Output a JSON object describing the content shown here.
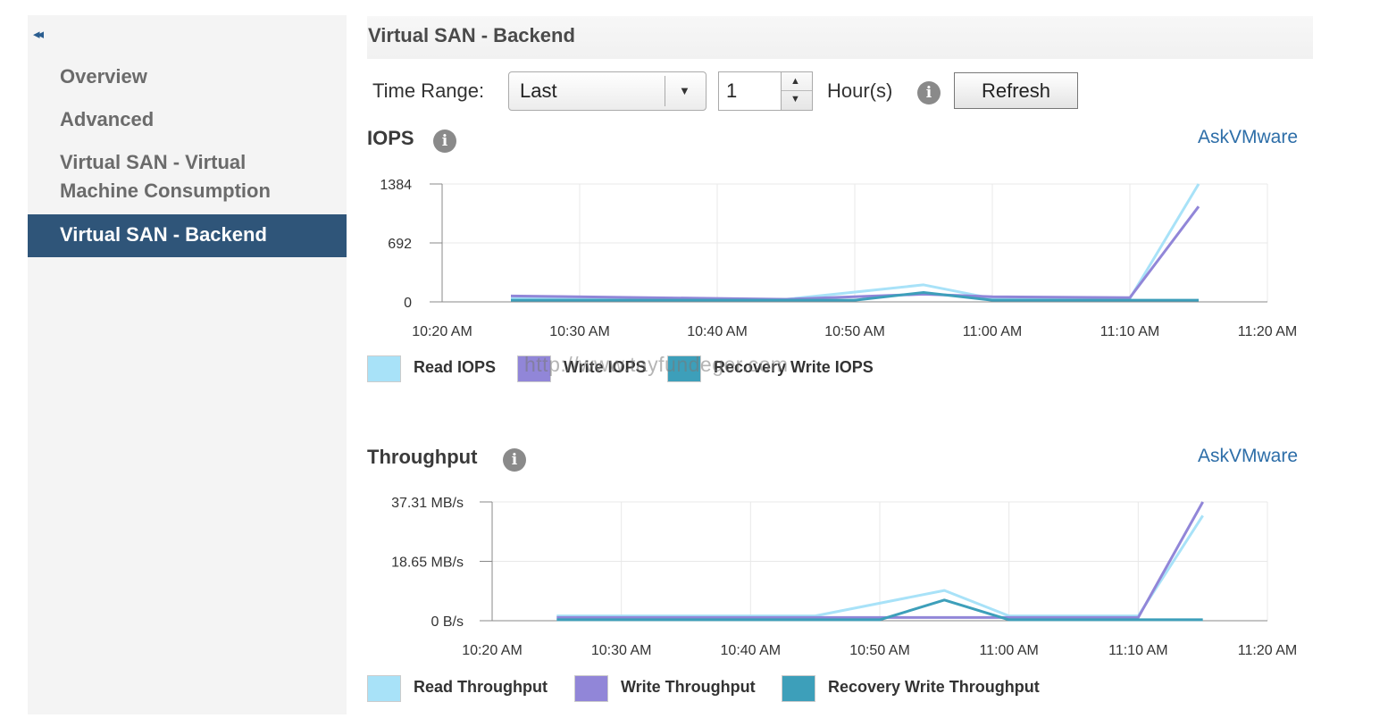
{
  "sidebar": {
    "collapse_glyph": "◂◂",
    "items": [
      {
        "label": "Overview"
      },
      {
        "label": "Advanced"
      },
      {
        "label": "Virtual SAN - Virtual"
      },
      {
        "label": "Machine Consumption"
      },
      {
        "label": "Virtual SAN - Backend"
      }
    ]
  },
  "page": {
    "title": "Virtual SAN - Backend"
  },
  "toolbar": {
    "time_range_label": "Time Range:",
    "time_range_value": "Last",
    "hours_value": "1",
    "hours_unit": "Hour(s)",
    "refresh_label": "Refresh",
    "info_glyph": "i"
  },
  "watermark": "http://www.tayfundeger.com",
  "colors": {
    "read": "#a8e2f8",
    "write": "#9186d8",
    "recovery": "#3d9fba",
    "link": "#2d6ea8",
    "active_nav": "#2f5579"
  },
  "charts": [
    {
      "title": "IOPS",
      "link": "AskVMware",
      "chart_data": {
        "type": "line",
        "x": [
          "10:25 AM",
          "10:35 AM",
          "10:45 AM",
          "10:55 AM",
          "11:00 AM",
          "11:05 AM",
          "11:10 AM",
          "11:15 AM"
        ],
        "x_ticks": [
          "10:20 AM",
          "10:30 AM",
          "10:40 AM",
          "10:50 AM",
          "11:00 AM",
          "11:10 AM",
          "11:20 AM"
        ],
        "y_ticks": [
          "1384",
          "692",
          "0"
        ],
        "ylim": [
          0,
          1384
        ],
        "series": [
          {
            "name": "Read IOPS",
            "color": "#a8e2f8",
            "points": [
              [
                "10:25",
                40
              ],
              [
                "10:45",
                30
              ],
              [
                "10:55",
                200
              ],
              [
                "11:00",
                40
              ],
              [
                "11:10",
                40
              ],
              [
                "11:15",
                1384
              ]
            ]
          },
          {
            "name": "Write IOPS",
            "color": "#9186d8",
            "points": [
              [
                "10:25",
                70
              ],
              [
                "10:45",
                30
              ],
              [
                "10:55",
                90
              ],
              [
                "11:00",
                60
              ],
              [
                "11:10",
                50
              ],
              [
                "11:15",
                1120
              ]
            ]
          },
          {
            "name": "Recovery Write IOPS",
            "color": "#3d9fba",
            "points": [
              [
                "10:25",
                20
              ],
              [
                "10:50",
                20
              ],
              [
                "10:55",
                110
              ],
              [
                "11:00",
                20
              ],
              [
                "11:15",
                20
              ]
            ]
          }
        ],
        "legend": [
          "Read IOPS",
          "Write IOPS",
          "Recovery Write IOPS"
        ],
        "grid": true
      }
    },
    {
      "title": "Throughput",
      "link": "AskVMware",
      "chart_data": {
        "type": "line",
        "x_ticks": [
          "10:20 AM",
          "10:30 AM",
          "10:40 AM",
          "10:50 AM",
          "11:00 AM",
          "11:10 AM",
          "11:20 AM"
        ],
        "y_ticks": [
          "37.31 MB/s",
          "18.65 MB/s",
          "0 B/s"
        ],
        "ylim": [
          0,
          37.31
        ],
        "series": [
          {
            "name": "Read Throughput",
            "color": "#a8e2f8",
            "points": [
              [
                "10:25",
                1.5
              ],
              [
                "10:45",
                1.5
              ],
              [
                "10:55",
                9.5
              ],
              [
                "11:00",
                1.5
              ],
              [
                "11:10",
                1.5
              ],
              [
                "11:15",
                33
              ]
            ]
          },
          {
            "name": "Write Throughput",
            "color": "#9186d8",
            "points": [
              [
                "10:25",
                1
              ],
              [
                "10:45",
                1
              ],
              [
                "10:55",
                1
              ],
              [
                "11:00",
                1
              ],
              [
                "11:10",
                1
              ],
              [
                "11:15",
                37.31
              ]
            ]
          },
          {
            "name": "Recovery Write Throughput",
            "color": "#3d9fba",
            "points": [
              [
                "10:25",
                0.3
              ],
              [
                "10:50",
                0.3
              ],
              [
                "10:55",
                6.5
              ],
              [
                "11:00",
                0.3
              ],
              [
                "11:15",
                0.3
              ]
            ]
          }
        ],
        "legend": [
          "Read Throughput",
          "Write Throughput",
          "Recovery Write Throughput"
        ],
        "grid": true
      }
    }
  ]
}
